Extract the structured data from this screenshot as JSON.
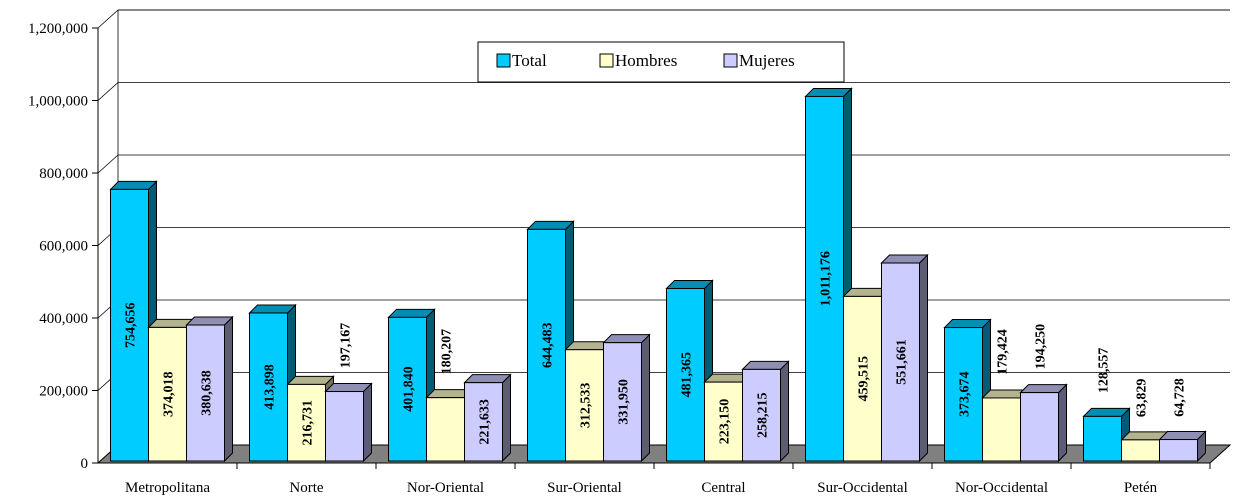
{
  "chart_data": {
    "type": "bar",
    "categories": [
      "Metropolitana",
      "Norte",
      "Nor-Oriental",
      "Sur-Oriental",
      "Central",
      "Sur-Occidental",
      "Nor-Occidental",
      "Petén"
    ],
    "series": [
      {
        "name": "Total",
        "color": "#00CCFF",
        "values": [
          754656,
          413898,
          401840,
          644483,
          481365,
          1011176,
          373674,
          128557
        ],
        "labels": [
          "754,656",
          "413,898",
          "401,840",
          "644,483",
          "481,365",
          "1,011,176",
          "373,674",
          "128,557"
        ]
      },
      {
        "name": "Hombres",
        "color": "#FFFFCC",
        "values": [
          374018,
          216731,
          180207,
          312533,
          223150,
          459515,
          179424,
          63829
        ],
        "labels": [
          "374,018",
          "216,731",
          "180,207",
          "312,533",
          "223,150",
          "459,515",
          "179,424",
          "63,829"
        ]
      },
      {
        "name": "Mujeres",
        "color": "#CCCCFF",
        "values": [
          380638,
          197167,
          221633,
          331950,
          258215,
          551661,
          194250,
          64728
        ],
        "labels": [
          "380,638",
          "197,167",
          "221,633",
          "331,950",
          "258,215",
          "551,661",
          "194,250",
          "64,728"
        ]
      }
    ],
    "y_ticks": [
      "0",
      "200,000",
      "400,000",
      "600,000",
      "800,000",
      "1,000,000",
      "1,200,000"
    ],
    "ylim": [
      0,
      1200000
    ],
    "grid": true,
    "legend_position": "top-center",
    "style": "3d-clustered-column"
  }
}
